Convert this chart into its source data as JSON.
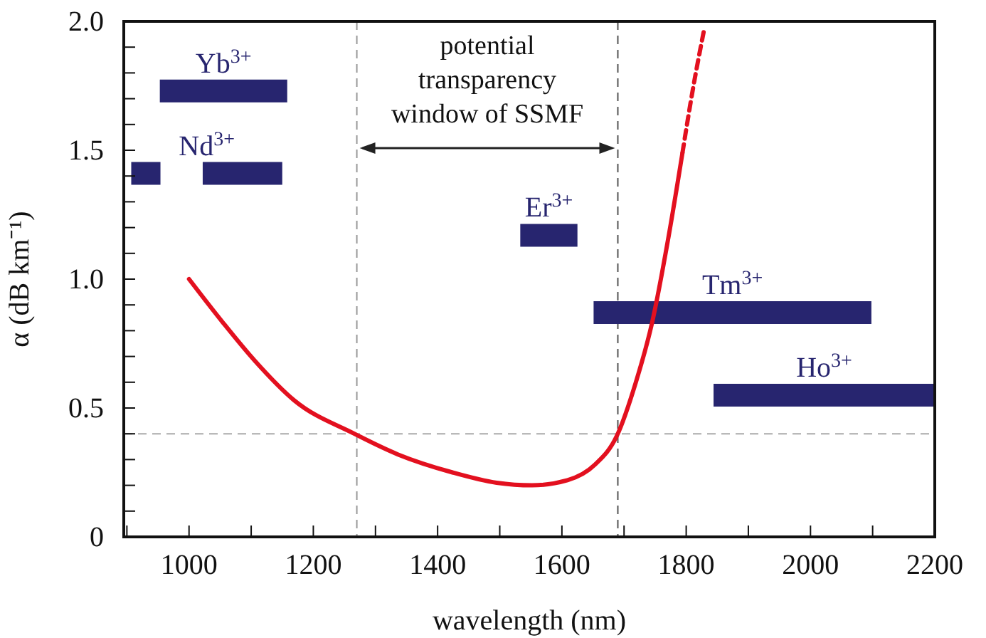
{
  "chart_data": {
    "type": "line",
    "xlabel": "wavelength (nm)",
    "ylabel": "α (dB km⁻¹)",
    "xlim": [
      895,
      2200
    ],
    "ylim": [
      0,
      2.0
    ],
    "xticks": [
      {
        "value": 900,
        "label": null
      },
      1000,
      {
        "value": 1100,
        "label": null
      },
      1200,
      {
        "value": 1300,
        "label": null
      },
      1400,
      {
        "value": 1500,
        "label": null
      },
      1600,
      {
        "value": 1700,
        "label": null
      },
      1800,
      {
        "value": 1900,
        "label": null
      },
      2000,
      {
        "value": 2100,
        "label": null
      },
      2200
    ],
    "yticks": [
      0,
      {
        "value": 0.1,
        "label": null
      },
      {
        "value": 0.2,
        "label": null
      },
      {
        "value": 0.3,
        "label": null
      },
      {
        "value": 0.4,
        "label": null
      },
      0.5,
      {
        "value": 0.6,
        "label": null
      },
      {
        "value": 0.7,
        "label": null
      },
      {
        "value": 0.8,
        "label": null
      },
      {
        "value": 0.9,
        "label": null
      },
      {
        "value": 1.0,
        "label": "1.0"
      },
      {
        "value": 1.1,
        "label": null
      },
      {
        "value": 1.2,
        "label": null
      },
      {
        "value": 1.3,
        "label": null
      },
      {
        "value": 1.4,
        "label": null
      },
      1.5,
      {
        "value": 1.6,
        "label": null
      },
      {
        "value": 1.7,
        "label": null
      },
      {
        "value": 1.8,
        "label": null
      },
      {
        "value": 1.9,
        "label": null
      },
      {
        "value": 2.0,
        "label": "2.0"
      }
    ],
    "grid": false,
    "marker": "none",
    "series": [
      {
        "color": "#e3101f",
        "line_style": "solid",
        "x": [
          1000,
          1055,
          1107,
          1169,
          1266,
          1336,
          1424,
          1495,
          1552,
          1609,
          1653,
          1688,
          1719,
          1745,
          1772,
          1794
        ],
        "values": [
          1.0,
          0.83,
          0.68,
          0.53,
          0.4,
          0.32,
          0.25,
          0.21,
          0.2,
          0.22,
          0.28,
          0.39,
          0.6,
          0.83,
          1.17,
          1.49
        ]
      },
      {
        "color": "#e3101f",
        "line_style": "dashed",
        "x": [
          1794,
          1811,
          1829
        ],
        "values": [
          1.49,
          1.74,
          1.97
        ]
      },
      {
        "name": "Yb$^{3+}$",
        "color": "#27256f",
        "line_style": "solid",
        "x": [
          953,
          1158
        ],
        "values": [
          1.73,
          1.73
        ]
      },
      {
        "name": "Nd$^{3+}$",
        "color": "#27256f",
        "line_style": "solid",
        "x": [
          907,
          954,
          990,
          1022,
          1150
        ],
        "values": [
          1.41,
          1.41,
          null,
          1.41,
          1.41
        ]
      },
      {
        "name": "Er$^{3+}$",
        "color": "#27256f",
        "line_style": "solid",
        "x": [
          1533,
          1625
        ],
        "values": [
          1.17,
          1.17
        ]
      },
      {
        "name": "Tm$^{3+}$",
        "color": "#27256f",
        "line_style": "solid",
        "x": [
          1651,
          2098
        ],
        "values": [
          0.87,
          0.87
        ]
      },
      {
        "name": "Ho$^{3+}$",
        "color": "#27256f",
        "line_style": "solid",
        "x": [
          1844,
          2200
        ],
        "values": [
          0.55,
          0.55
        ]
      }
    ],
    "ref_lines": [
      {
        "axis": "x",
        "value": 1270,
        "color": "#999999",
        "line_style": "dashed"
      },
      {
        "axis": "x",
        "value": 1690,
        "color": "#555555",
        "line_style": "dashed"
      },
      {
        "axis": "y",
        "value": 0.4,
        "color": "#aaaaaa",
        "line_style": "dashed"
      }
    ],
    "annotations": [
      "potential transparency window of SSMF"
    ]
  }
}
